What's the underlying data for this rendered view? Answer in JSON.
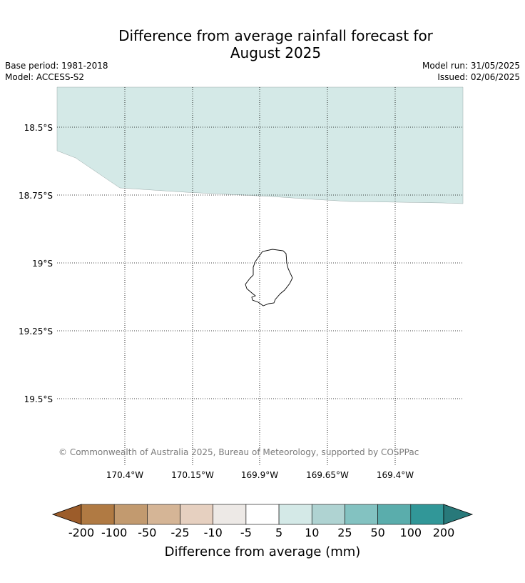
{
  "title": {
    "line1": "Difference from average rainfall forecast for",
    "line2": "August 2025"
  },
  "meta": {
    "base_period": "Base period: 1981-2018",
    "model": "Model: ACCESS-S2",
    "model_run": "Model run: 31/05/2025",
    "issued": "Issued: 02/06/2025"
  },
  "map": {
    "lat_labels": [
      "18.5°S",
      "18.75°S",
      "19°S",
      "19.25°S",
      "19.5°S"
    ],
    "lon_labels": [
      "170.4°W",
      "170.15°W",
      "169.9°W",
      "169.65°W",
      "169.4°W"
    ],
    "shaded_region_class": "5 to 10 mm",
    "shaded_region_color": "#d4e9e7",
    "copyright": "© Commonwealth of Australia 2025, Bureau of Meteorology, supported by COSPPac"
  },
  "colorbar": {
    "label": "Difference from average (mm)",
    "tick_labels": [
      "-200",
      "-100",
      "-50",
      "-25",
      "-10",
      "-5",
      "5",
      "10",
      "25",
      "50",
      "100",
      "200"
    ],
    "colors": [
      "#9c5c2a",
      "#b07a43",
      "#c29a6f",
      "#d5b596",
      "#e6d0c0",
      "#ede9e6",
      "#ffffff",
      "#d4e9e7",
      "#afd3d2",
      "#83c2c1",
      "#5aadac",
      "#319798",
      "#28797a"
    ]
  }
}
